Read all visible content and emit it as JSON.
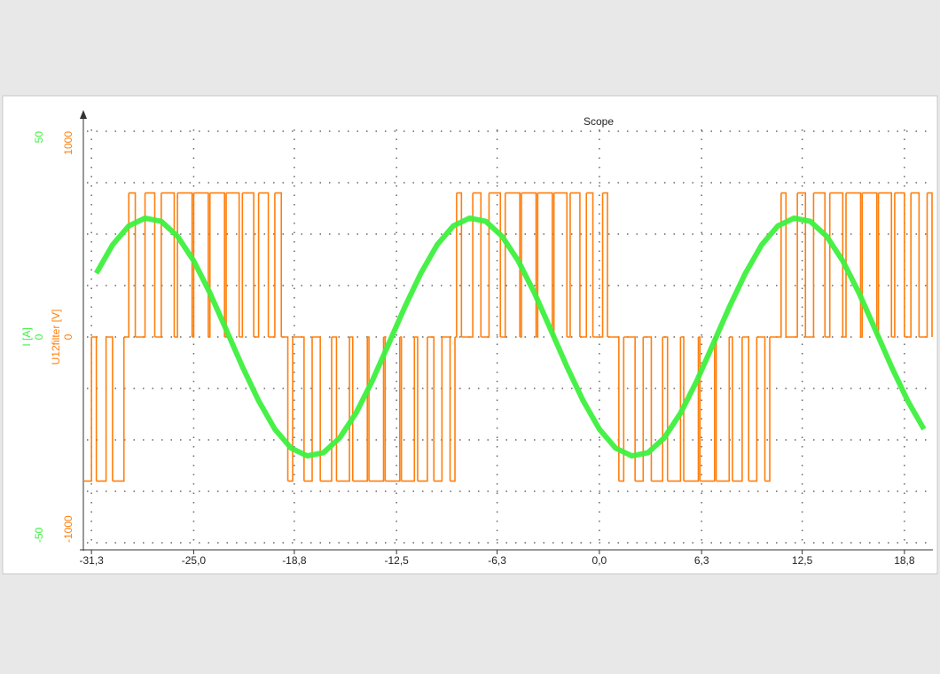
{
  "chart_data": {
    "type": "scope",
    "title": "Scope",
    "xlim": [
      -31.8,
      20.5
    ],
    "xticks": [
      {
        "value": -31.3,
        "label": "-31,3"
      },
      {
        "value": -25.0,
        "label": "-25,0"
      },
      {
        "value": -18.8,
        "label": "-18,8"
      },
      {
        "value": -12.5,
        "label": "-12,5"
      },
      {
        "value": -6.3,
        "label": "-6,3"
      },
      {
        "value": 0.0,
        "label": "0,0"
      },
      {
        "value": 6.3,
        "label": "6,3"
      },
      {
        "value": 12.5,
        "label": "12,5"
      },
      {
        "value": 18.8,
        "label": "18,8"
      }
    ],
    "ylim": [
      -1000,
      1000
    ],
    "yticks": [
      -1000,
      0,
      1000
    ],
    "y2lim": [
      -50,
      50
    ],
    "y2ticks": [
      -50,
      0,
      50
    ],
    "y_grid": [
      -750,
      -500,
      -250,
      250,
      500,
      750
    ],
    "grid": true,
    "series": [
      {
        "name": "U12filter [V]",
        "color": "#ff7f0e",
        "axis": "y",
        "step": true,
        "x": [
          -31.8,
          -31.3,
          -31.0,
          -30.4,
          -30.0,
          -29.3,
          -29.0,
          -28.6,
          -28.0,
          -27.4,
          -27.0,
          -26.2,
          -26.0,
          -25.1,
          -25.0,
          -24.1,
          -24.0,
          -23.1,
          -23.0,
          -22.2,
          -22.0,
          -21.3,
          -21.0,
          -20.4,
          -20.0,
          -19.6,
          -19.2,
          -18.9,
          -18.2,
          -17.7,
          -17.2,
          -16.5,
          -16.2,
          -15.4,
          -15.2,
          -14.3,
          -14.2,
          -13.3,
          -13.2,
          -12.3,
          -12.2,
          -11.4,
          -11.2,
          -10.6,
          -10.2,
          -9.7,
          -9.2,
          -8.9,
          -8.8,
          -8.5,
          -7.8,
          -7.3,
          -6.8,
          -6.1,
          -5.8,
          -4.9,
          -4.8,
          -3.9,
          -3.8,
          -2.9,
          -2.8,
          -2.0,
          -1.8,
          -1.2,
          -0.8,
          -0.4,
          0.2,
          0.5,
          1.2,
          1.5,
          2.2,
          2.7,
          3.2,
          3.9,
          4.2,
          5.0,
          5.2,
          6.1,
          6.2,
          7.1,
          7.2,
          8.0,
          8.2,
          8.8,
          9.2,
          9.7,
          10.2,
          10.5,
          11.2,
          11.5,
          12.2,
          12.7,
          13.2,
          13.9,
          14.2,
          15.0,
          15.2,
          16.1,
          16.2,
          17.1,
          17.2,
          18.0,
          18.2,
          18.8,
          19.2,
          19.7,
          20.2,
          20.5
        ],
        "values": [
          -700,
          0,
          -700,
          0,
          -700,
          0,
          700,
          0,
          700,
          0,
          700,
          0,
          700,
          0,
          700,
          0,
          700,
          0,
          700,
          0,
          700,
          0,
          700,
          0,
          700,
          0,
          -700,
          0,
          -700,
          0,
          -700,
          0,
          -700,
          0,
          -700,
          0,
          -700,
          0,
          -700,
          0,
          -700,
          0,
          -700,
          0,
          -700,
          0,
          -700,
          0,
          700,
          0,
          700,
          0,
          700,
          0,
          700,
          0,
          700,
          0,
          700,
          0,
          700,
          0,
          700,
          0,
          700,
          0,
          700,
          0,
          -700,
          0,
          -700,
          0,
          -700,
          0,
          -700,
          0,
          -700,
          0,
          -700,
          0,
          -700,
          0,
          -700,
          0,
          -700,
          0,
          -700,
          0,
          700,
          0,
          700,
          0,
          700,
          0,
          700,
          0,
          700,
          0,
          700,
          0,
          700,
          0,
          700,
          0,
          700,
          0,
          700,
          0
        ]
      },
      {
        "name": "I [A]",
        "color": "#3ef03e",
        "axis": "y2",
        "x": [
          -31,
          -30,
          -29,
          -28,
          -27,
          -26,
          -25,
          -24,
          -23,
          -22,
          -21,
          -20,
          -19,
          -18,
          -17,
          -16,
          -15,
          -14,
          -13,
          -12,
          -11,
          -10,
          -9,
          -8,
          -7,
          -6,
          -5,
          -4,
          -3,
          -2,
          -1,
          0,
          1,
          2,
          3,
          4,
          5,
          6,
          7,
          8,
          9,
          10,
          11,
          12,
          13,
          14,
          15,
          16,
          17,
          18,
          19,
          20
        ],
        "values": [
          15.5,
          22.4,
          27.0,
          28.9,
          28.1,
          24.5,
          18.5,
          10.7,
          1.8,
          -7.2,
          -15.5,
          -22.4,
          -27.0,
          -28.9,
          -28.1,
          -24.5,
          -18.5,
          -10.7,
          -1.8,
          7.2,
          15.5,
          22.4,
          27.0,
          28.9,
          28.1,
          24.5,
          18.5,
          10.7,
          1.8,
          -7.2,
          -15.5,
          -22.4,
          -27.0,
          -28.9,
          -28.1,
          -24.5,
          -18.5,
          -10.7,
          -1.8,
          7.2,
          15.5,
          22.4,
          27.0,
          28.9,
          28.1,
          24.5,
          18.5,
          10.7,
          1.8,
          -7.2,
          -15.5,
          -22.4
        ]
      }
    ]
  }
}
